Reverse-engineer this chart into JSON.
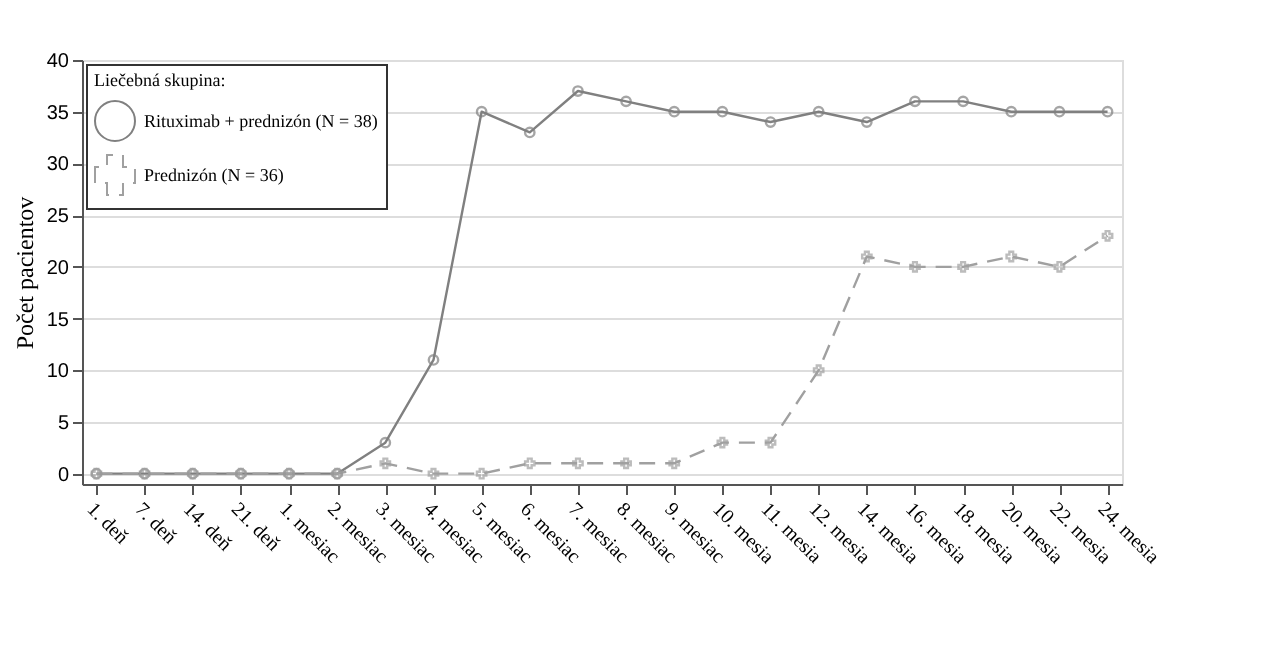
{
  "chart_data": {
    "type": "line",
    "ylabel": "Počet pacientov",
    "legend_title": "Liečebná skupina:",
    "legend": "top left",
    "grid": "y",
    "categories": [
      "1. deň",
      "7. deň",
      "14. deň",
      "21. deň",
      "1. mesiac",
      "2. mesiac",
      "3. mesiac",
      "4. mesiac",
      "5. mesiac",
      "6. mesiac",
      "7. mesiac",
      "8. mesiac",
      "9. mesiac",
      "10. mesia",
      "11. mesia",
      "12. mesia",
      "14. mesia",
      "16. mesia",
      "18. mesia",
      "20. mesia",
      "22. mesia",
      "24. mesia"
    ],
    "ylim": [
      -1,
      40
    ],
    "yticks": [
      0,
      5,
      10,
      15,
      20,
      25,
      30,
      35,
      40
    ],
    "series": [
      {
        "name": "Rituximab + prednizón (N = 38)",
        "color": "#808080",
        "marker": "circle",
        "line_style": "solid",
        "values": [
          0,
          0,
          0,
          0,
          0,
          0,
          3,
          11,
          35,
          33,
          37,
          36,
          35,
          35,
          34,
          35,
          34,
          36,
          36,
          35,
          35,
          35
        ]
      },
      {
        "name": "Prednizón (N = 36)",
        "color": "#a0a0a0",
        "marker": "cross",
        "line_style": "dashed",
        "values": [
          0,
          0,
          0,
          0,
          0,
          0,
          1,
          0,
          0,
          1,
          1,
          1,
          1,
          3,
          3,
          10,
          21,
          20,
          20,
          21,
          20,
          23
        ]
      }
    ]
  }
}
